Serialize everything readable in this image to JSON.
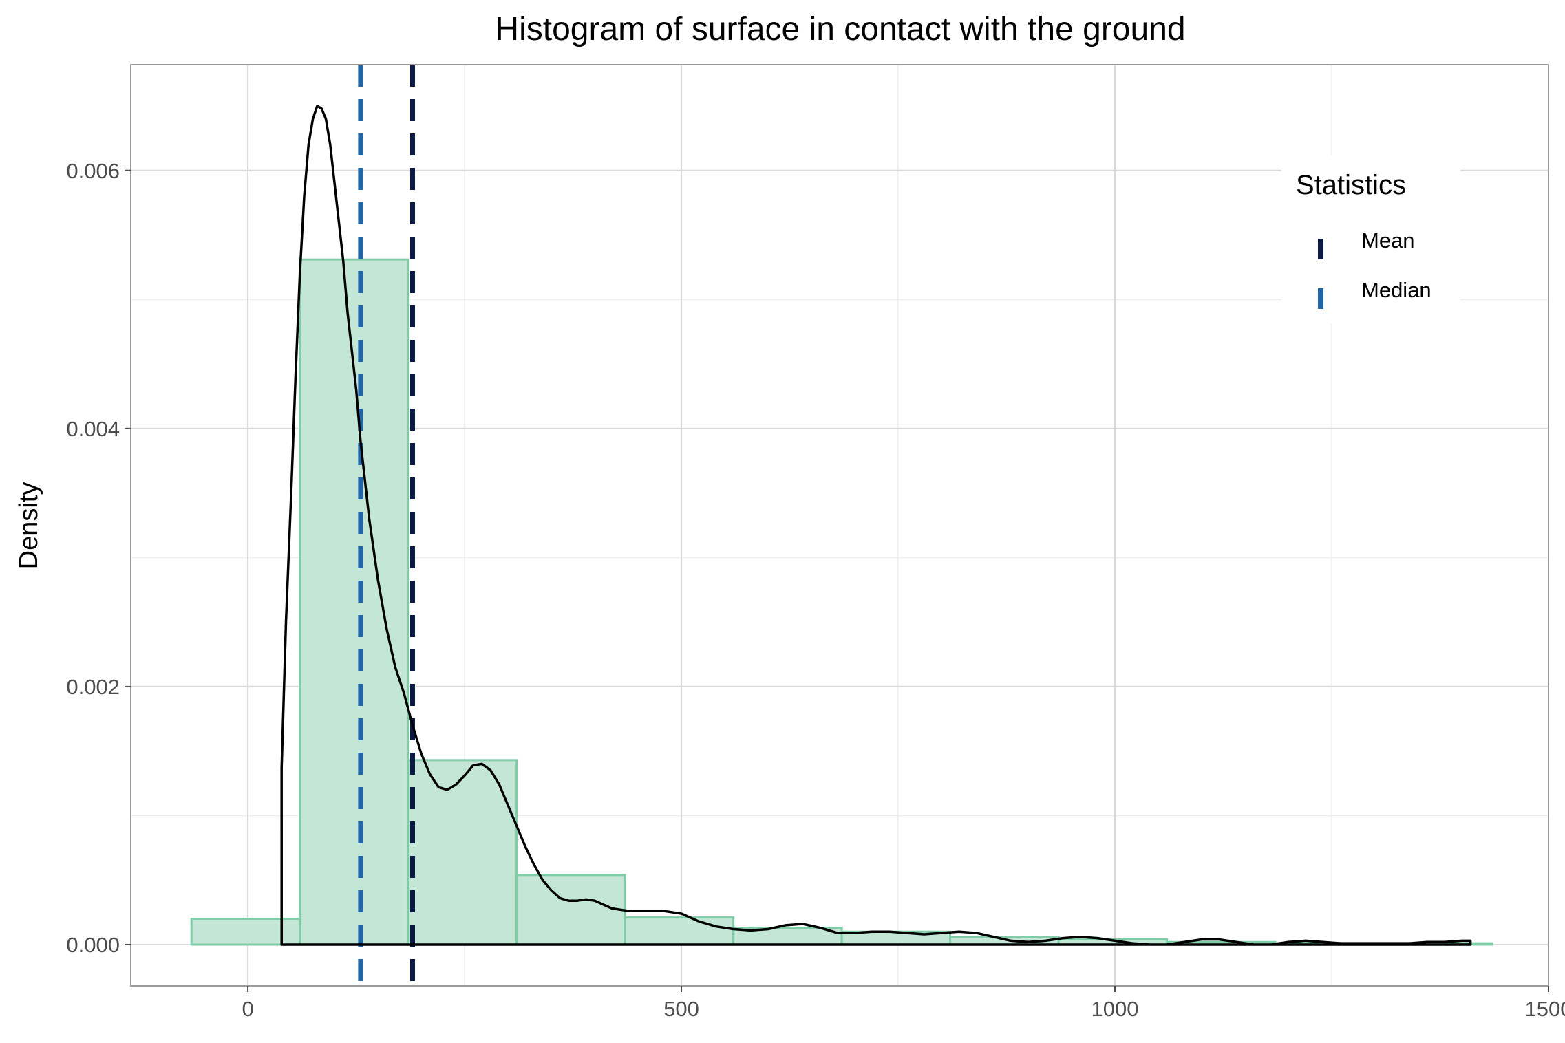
{
  "chart_data": {
    "type": "histogram",
    "title": "Histogram of surface in contact with the ground",
    "xlabel": "",
    "ylabel": "Density",
    "xlim": [
      -135,
      1500
    ],
    "ylim": [
      -0.00032,
      0.00682
    ],
    "x_ticks": [
      0,
      500,
      1000,
      1500
    ],
    "x_tick_labels": [
      "0",
      "500",
      "1000",
      "1500"
    ],
    "y_ticks": [
      0,
      0.002,
      0.004,
      0.006
    ],
    "y_tick_labels": [
      "0.000",
      "0.002",
      "0.004",
      "0.006"
    ],
    "grid": true,
    "histogram": {
      "fill_color": "#c3e6d7",
      "edge_color": "#7fcda6",
      "bins": [
        {
          "x0": -65,
          "x1": 60,
          "density": 0.0002
        },
        {
          "x0": 60,
          "x1": 185,
          "density": 0.00531
        },
        {
          "x0": 185,
          "x1": 310,
          "density": 0.00143
        },
        {
          "x0": 310,
          "x1": 435,
          "density": 0.00054
        },
        {
          "x0": 435,
          "x1": 560,
          "density": 0.00021
        },
        {
          "x0": 560,
          "x1": 685,
          "density": 0.00013
        },
        {
          "x0": 685,
          "x1": 810,
          "density": 0.0001
        },
        {
          "x0": 810,
          "x1": 935,
          "density": 6e-05
        },
        {
          "x0": 935,
          "x1": 1060,
          "density": 4e-05
        },
        {
          "x0": 1060,
          "x1": 1185,
          "density": 2e-05
        },
        {
          "x0": 1185,
          "x1": 1310,
          "density": 1e-05
        },
        {
          "x0": 1310,
          "x1": 1435,
          "density": 1e-05
        }
      ]
    },
    "density_curve": {
      "color": "#000000",
      "x": [
        39,
        44,
        50,
        55,
        60,
        65,
        70,
        75,
        80,
        85,
        90,
        95,
        100,
        105,
        110,
        115,
        120,
        125,
        130,
        140,
        150,
        160,
        170,
        180,
        190,
        200,
        210,
        220,
        230,
        240,
        250,
        260,
        270,
        280,
        290,
        300,
        310,
        320,
        330,
        340,
        350,
        360,
        370,
        380,
        390,
        400,
        420,
        440,
        460,
        480,
        500,
        520,
        540,
        560,
        580,
        600,
        620,
        640,
        660,
        680,
        700,
        720,
        740,
        760,
        780,
        800,
        820,
        840,
        860,
        880,
        900,
        920,
        940,
        960,
        980,
        1000,
        1020,
        1040,
        1060,
        1080,
        1100,
        1120,
        1140,
        1160,
        1180,
        1200,
        1220,
        1240,
        1260,
        1280,
        1300,
        1320,
        1340,
        1360,
        1380,
        1400,
        1410
      ],
      "y": [
        0.00137,
        0.0025,
        0.0035,
        0.0044,
        0.0052,
        0.0058,
        0.0062,
        0.0064,
        0.0065,
        0.00648,
        0.0064,
        0.0062,
        0.0059,
        0.0056,
        0.0053,
        0.0049,
        0.0046,
        0.0043,
        0.0039,
        0.0033,
        0.00283,
        0.00245,
        0.00215,
        0.00195,
        0.0017,
        0.00148,
        0.00132,
        0.00122,
        0.0012,
        0.00124,
        0.00131,
        0.00139,
        0.0014,
        0.00135,
        0.00124,
        0.00108,
        0.00092,
        0.00076,
        0.00062,
        0.0005,
        0.00042,
        0.00036,
        0.00034,
        0.00034,
        0.00035,
        0.00034,
        0.00028,
        0.00026,
        0.00026,
        0.00026,
        0.00024,
        0.00018,
        0.00014,
        0.00012,
        0.00011,
        0.00012,
        0.00015,
        0.00016,
        0.00013,
        9e-05,
        9e-05,
        0.0001,
        0.0001,
        9e-05,
        8e-05,
        9e-05,
        0.0001,
        9e-05,
        6e-05,
        3e-05,
        2e-05,
        3e-05,
        5e-05,
        6e-05,
        5e-05,
        3e-05,
        1e-05,
        0.0,
        0.0,
        2e-05,
        4e-05,
        4e-05,
        2e-05,
        0.0,
        0.0,
        2e-05,
        3e-05,
        2e-05,
        1e-05,
        1e-05,
        1e-05,
        1e-05,
        1e-05,
        2e-05,
        2e-05,
        3e-05,
        3e-05
      ]
    },
    "vlines": [
      {
        "name": "Mean",
        "x": 190,
        "color": "#0b1a45"
      },
      {
        "name": "Median",
        "x": 130,
        "color": "#2066a8"
      }
    ],
    "legend": {
      "title": "Statistics",
      "position": "top-right",
      "entries": [
        {
          "label": "Mean",
          "color": "#0b1a45"
        },
        {
          "label": "Median",
          "color": "#2066a8"
        }
      ]
    }
  }
}
